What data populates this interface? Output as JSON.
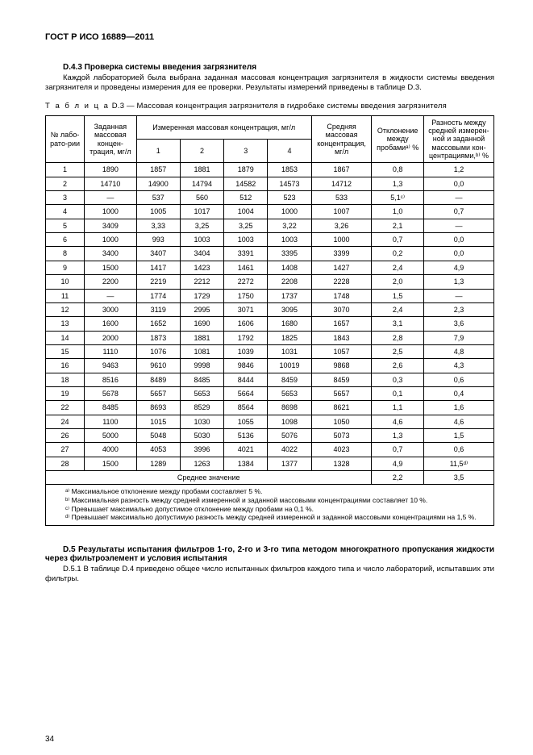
{
  "doc_title": "ГОСТ Р ИСО 16889—2011",
  "d43": {
    "heading": "D.4.3  Проверка системы введения загрязнителя",
    "para": "Каждой лабораторией была выбрана заданная массовая концентрация загрязнителя в жидкости системы введения загрязнителя и проведены измерения для ее проверки. Результаты измерений приведены в таблице D.3."
  },
  "table_caption_prefix": "Т а б л и ц а",
  "table_caption": "  D.3 — Массовая концентрация загрязнителя в гидробаке системы введения загрязнителя",
  "head": {
    "c1": "№ лабо-рато-рии",
    "c2": "Заданная массовая концен-трация, мг/л",
    "c3": "Измеренная массовая концентрация, мг/л",
    "c3_1": "1",
    "c3_2": "2",
    "c3_3": "3",
    "c3_4": "4",
    "c4": "Средняя массовая концентрация, мг/л",
    "c5": "Отклонение между пробамиᵃ⁾ %",
    "c6": "Разность между средней измерен-ной и заданной массовыми кон-центрациями,ᵇ⁾ %"
  },
  "rows": [
    [
      "1",
      "1890",
      "1857",
      "1881",
      "1879",
      "1853",
      "1867",
      "0,8",
      "1,2"
    ],
    [
      "2",
      "14710",
      "14900",
      "14794",
      "14582",
      "14573",
      "14712",
      "1,3",
      "0,0"
    ],
    [
      "3",
      "—",
      "537",
      "560",
      "512",
      "523",
      "533",
      "5,1ᶜ⁾",
      "—"
    ],
    [
      "4",
      "1000",
      "1005",
      "1017",
      "1004",
      "1000",
      "1007",
      "1,0",
      "0,7"
    ],
    [
      "5",
      "3409",
      "3,33",
      "3,25",
      "3,25",
      "3,22",
      "3,26",
      "2,1",
      "—"
    ],
    [
      "6",
      "1000",
      "993",
      "1003",
      "1003",
      "1003",
      "1000",
      "0,7",
      "0,0"
    ],
    [
      "8",
      "3400",
      "3407",
      "3404",
      "3391",
      "3395",
      "3399",
      "0,2",
      "0,0"
    ],
    [
      "9",
      "1500",
      "1417",
      "1423",
      "1461",
      "1408",
      "1427",
      "2,4",
      "4,9"
    ],
    [
      "10",
      "2200",
      "2219",
      "2212",
      "2272",
      "2208",
      "2228",
      "2,0",
      "1,3"
    ],
    [
      "11",
      "—",
      "1774",
      "1729",
      "1750",
      "1737",
      "1748",
      "1,5",
      "—"
    ],
    [
      "12",
      "3000",
      "3119",
      "2995",
      "3071",
      "3095",
      "3070",
      "2,4",
      "2,3"
    ],
    [
      "13",
      "1600",
      "1652",
      "1690",
      "1606",
      "1680",
      "1657",
      "3,1",
      "3,6"
    ],
    [
      "14",
      "2000",
      "1873",
      "1881",
      "1792",
      "1825",
      "1843",
      "2,8",
      "7,9"
    ],
    [
      "15",
      "1110",
      "1076",
      "1081",
      "1039",
      "1031",
      "1057",
      "2,5",
      "4,8"
    ],
    [
      "16",
      "9463",
      "9610",
      "9998",
      "9846",
      "10019",
      "9868",
      "2,6",
      "4,3"
    ],
    [
      "18",
      "8516",
      "8489",
      "8485",
      "8444",
      "8459",
      "8459",
      "0,3",
      "0,6"
    ],
    [
      "19",
      "5678",
      "5657",
      "5653",
      "5664",
      "5653",
      "5657",
      "0,1",
      "0,4"
    ],
    [
      "22",
      "8485",
      "8693",
      "8529",
      "8564",
      "8698",
      "8621",
      "1,1",
      "1,6"
    ],
    [
      "24",
      "1100",
      "1015",
      "1030",
      "1055",
      "1098",
      "1050",
      "4,6",
      "4,6"
    ],
    [
      "26",
      "5000",
      "5048",
      "5030",
      "5136",
      "5076",
      "5073",
      "1,3",
      "1,5"
    ],
    [
      "27",
      "4000",
      "4053",
      "3996",
      "4021",
      "4022",
      "4023",
      "0,7",
      "0,6"
    ],
    [
      "28",
      "1500",
      "1289",
      "1263",
      "1384",
      "1377",
      "1328",
      "4,9",
      "11,5ᵈ⁾"
    ]
  ],
  "avg_label": "Среднее значение",
  "avg_v1": "2,2",
  "avg_v2": "3,5",
  "footnotes": {
    "a": "ᵃ⁾ Максимальное отклонение между пробами составляет 5 %.",
    "b": "ᵇ⁾ Максимальная разность между средней измеренной и заданной массовыми концентрациями составляет 10 %.",
    "c": "ᶜ⁾ Превышает максимально допустимое отклонение между пробами на 0,1 %.",
    "d": "ᵈ⁾ Превышает максимально допустимую разность между средней измеренной и заданной массовыми концентрациями на 1,5 %."
  },
  "d5": {
    "heading": "D.5  Результаты испытания фильтров 1-го, 2-го и 3-го типа методом многократного пропускания жидкости через фильтроэлемент и условия испытания",
    "para": "D.5.1 В таблице D.4 приведено общее число испытанных фильтров каждого типа и число лабораторий, испытавших эти фильтры."
  },
  "page_number": "34"
}
